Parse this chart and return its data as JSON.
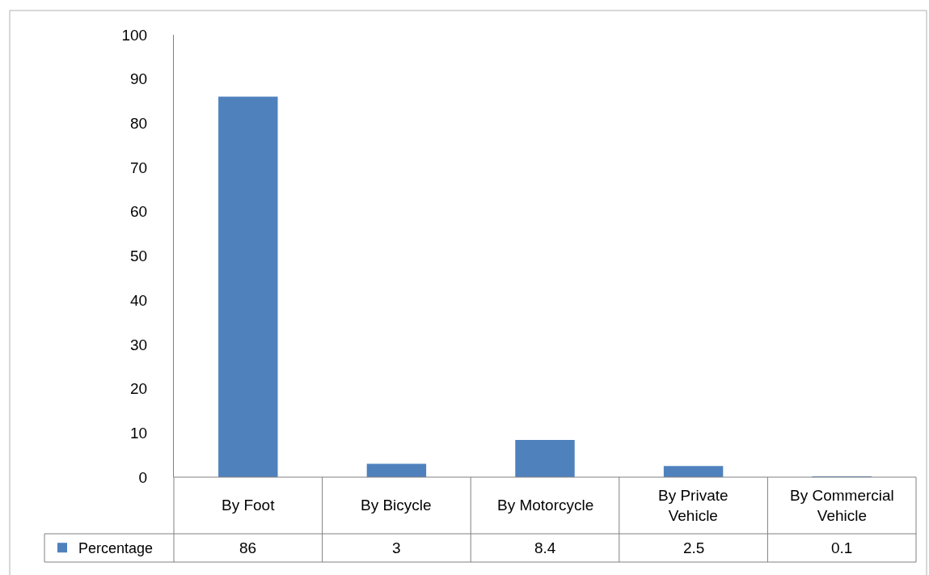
{
  "chart_data": {
    "type": "bar",
    "categories": [
      "By Foot",
      "By Bicycle",
      "By Motorcycle",
      "By Private Vehicle",
      "By Commercial Vehicle"
    ],
    "series": [
      {
        "name": "Percentage",
        "color": "#4f81bd",
        "values": [
          86,
          3,
          8.4,
          2.5,
          0.1
        ]
      }
    ],
    "ylim": [
      0,
      100
    ],
    "yticks": [
      0,
      10,
      20,
      30,
      40,
      50,
      60,
      70,
      80,
      90,
      100
    ],
    "data_labels": true,
    "legend": "bottom left"
  }
}
